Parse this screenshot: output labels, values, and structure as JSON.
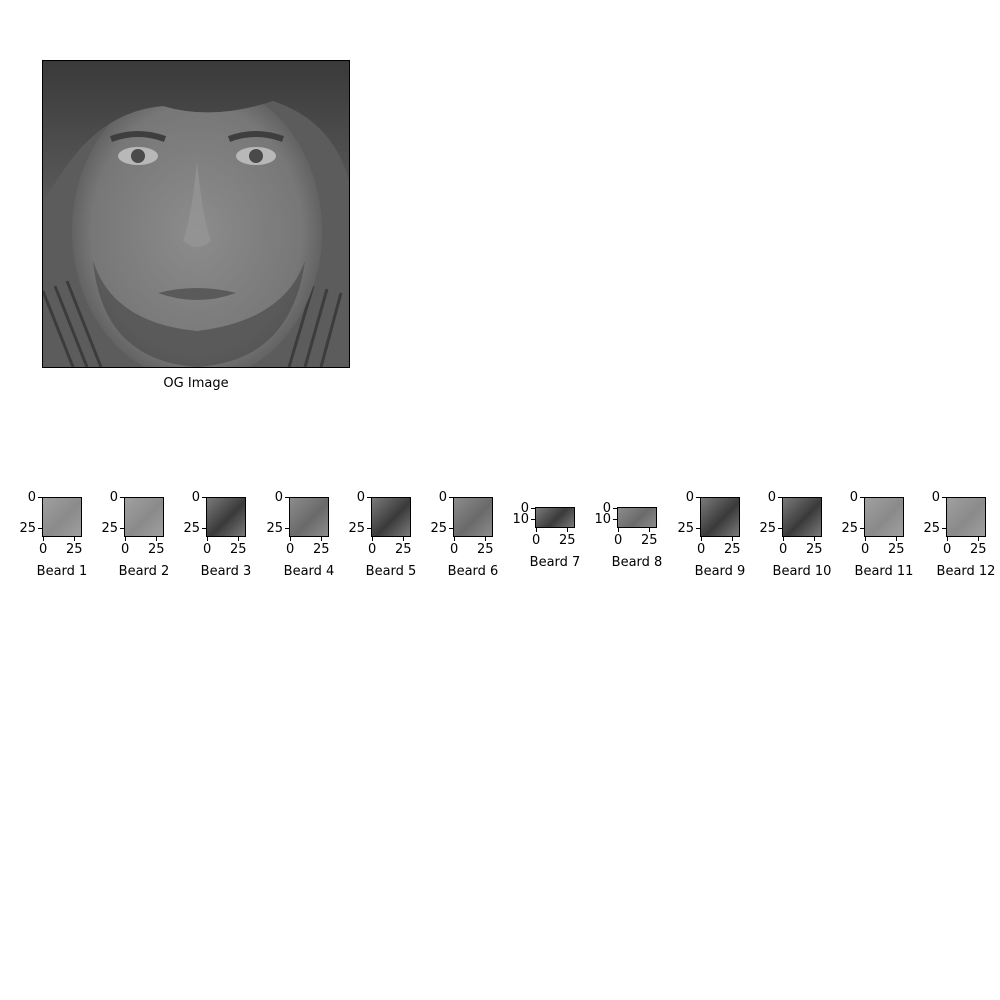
{
  "figure": {
    "main": {
      "caption": "OG Image"
    },
    "thumbnails": [
      {
        "caption": "Beard 1",
        "y_ticks": [
          "0",
          "25"
        ],
        "x_ticks": [
          "0",
          "25"
        ],
        "tone": "light",
        "shape": "square"
      },
      {
        "caption": "Beard 2",
        "y_ticks": [
          "0",
          "25"
        ],
        "x_ticks": [
          "0",
          "25"
        ],
        "tone": "light",
        "shape": "square"
      },
      {
        "caption": "Beard 3",
        "y_ticks": [
          "0",
          "25"
        ],
        "x_ticks": [
          "0",
          "25"
        ],
        "tone": "dark",
        "shape": "square"
      },
      {
        "caption": "Beard 4",
        "y_ticks": [
          "0",
          "25"
        ],
        "x_ticks": [
          "0",
          "25"
        ],
        "tone": "mid",
        "shape": "square"
      },
      {
        "caption": "Beard 5",
        "y_ticks": [
          "0",
          "25"
        ],
        "x_ticks": [
          "0",
          "25"
        ],
        "tone": "dark",
        "shape": "square"
      },
      {
        "caption": "Beard 6",
        "y_ticks": [
          "0",
          "25"
        ],
        "x_ticks": [
          "0",
          "25"
        ],
        "tone": "mid",
        "shape": "square"
      },
      {
        "caption": "Beard 7",
        "y_ticks": [
          "0",
          "10"
        ],
        "x_ticks": [
          "0",
          "25"
        ],
        "tone": "dark",
        "shape": "wide"
      },
      {
        "caption": "Beard 8",
        "y_ticks": [
          "0",
          "10"
        ],
        "x_ticks": [
          "0",
          "25"
        ],
        "tone": "mid",
        "shape": "wide"
      },
      {
        "caption": "Beard 9",
        "y_ticks": [
          "0",
          "25"
        ],
        "x_ticks": [
          "0",
          "25"
        ],
        "tone": "dark",
        "shape": "square"
      },
      {
        "caption": "Beard 10",
        "y_ticks": [
          "0",
          "25"
        ],
        "x_ticks": [
          "0",
          "25"
        ],
        "tone": "dark",
        "shape": "square"
      },
      {
        "caption": "Beard 11",
        "y_ticks": [
          "0",
          "25"
        ],
        "x_ticks": [
          "0",
          "25"
        ],
        "tone": "light",
        "shape": "square"
      },
      {
        "caption": "Beard 12",
        "y_ticks": [
          "0",
          "25"
        ],
        "x_ticks": [
          "0",
          "25"
        ],
        "tone": "light",
        "shape": "square"
      }
    ]
  }
}
